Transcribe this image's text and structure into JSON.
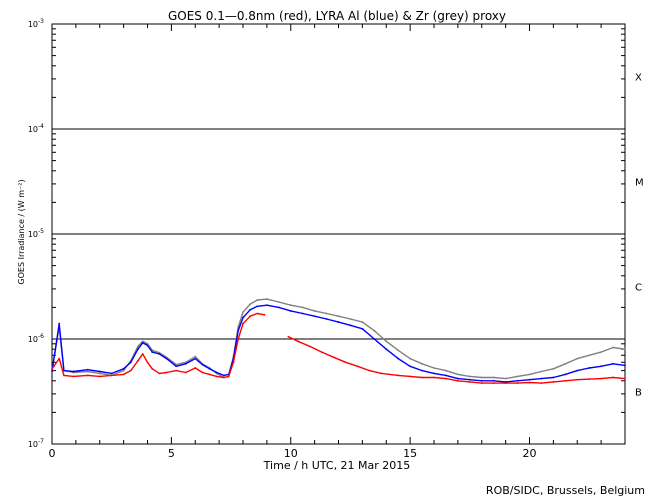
{
  "chart_data": {
    "type": "scatter",
    "title": "GOES 0.1—0.8nm (red), LYRA Al (blue) & Zr (grey) proxy",
    "xlabel": "Time / h UTC, 21 Mar 2015",
    "ylabel": "GOES Irradiance / (W m⁻²)",
    "credit": "ROB/SIDC, Brussels, Belgium",
    "y_scale": "log",
    "xlim": [
      0,
      24
    ],
    "ylim": [
      1e-07,
      0.001
    ],
    "grid": "horizontal lines at flare class boundaries",
    "x_ticks": [
      {
        "value": 0,
        "label": "0"
      },
      {
        "value": 5,
        "label": "5"
      },
      {
        "value": 10,
        "label": "10"
      },
      {
        "value": 15,
        "label": "15"
      },
      {
        "value": 20,
        "label": "20"
      }
    ],
    "y_ticks": [
      {
        "value": 1e-07,
        "base": "10",
        "exp": "-7"
      },
      {
        "value": 1e-06,
        "base": "10",
        "exp": "-6"
      },
      {
        "value": 1e-05,
        "base": "10",
        "exp": "-5"
      },
      {
        "value": 0.0001,
        "base": "10",
        "exp": "-4"
      },
      {
        "value": 0.001,
        "base": "10",
        "exp": "-3"
      }
    ],
    "flare_classes": [
      {
        "label": "X",
        "min": 0.0001,
        "max": 0.001
      },
      {
        "label": "M",
        "min": 1e-05,
        "max": 0.0001
      },
      {
        "label": "C",
        "min": 1e-06,
        "max": 1e-05
      },
      {
        "label": "B",
        "min": 1e-07,
        "max": 1e-06
      }
    ],
    "class_boundaries": [
      1e-06,
      1e-05,
      0.0001
    ],
    "series": [
      {
        "name": "GOES 0.1—0.8nm",
        "color": "#ff0000",
        "segments": [
          [
            [
              0.0,
              5.2e-07
            ],
            [
              0.3,
              6.5e-07
            ],
            [
              0.5,
              4.5e-07
            ],
            [
              0.9,
              4.4e-07
            ],
            [
              1.5,
              4.5e-07
            ],
            [
              2.0,
              4.4e-07
            ],
            [
              2.5,
              4.5e-07
            ],
            [
              3.0,
              4.6e-07
            ],
            [
              3.3,
              5e-07
            ],
            [
              3.6,
              6.2e-07
            ],
            [
              3.8,
              7.2e-07
            ],
            [
              4.0,
              6e-07
            ],
            [
              4.2,
              5.2e-07
            ],
            [
              4.5,
              4.7e-07
            ],
            [
              4.8,
              4.8e-07
            ],
            [
              5.2,
              5e-07
            ],
            [
              5.6,
              4.8e-07
            ],
            [
              6.0,
              5.3e-07
            ],
            [
              6.3,
              4.8e-07
            ],
            [
              6.6,
              4.6e-07
            ],
            [
              6.9,
              4.4e-07
            ],
            [
              7.2,
              4.3e-07
            ],
            [
              7.4,
              4.4e-07
            ],
            [
              7.6,
              6e-07
            ],
            [
              7.8,
              1e-06
            ],
            [
              8.0,
              1.4e-06
            ],
            [
              8.3,
              1.65e-06
            ],
            [
              8.6,
              1.75e-06
            ],
            [
              8.9,
              1.7e-06
            ]
          ],
          [
            [
              9.9,
              1.05e-06
            ],
            [
              10.3,
              9.5e-07
            ],
            [
              10.8,
              8.5e-07
            ],
            [
              11.3,
              7.5e-07
            ],
            [
              11.8,
              6.7e-07
            ],
            [
              12.3,
              6e-07
            ],
            [
              12.8,
              5.5e-07
            ],
            [
              13.3,
              5e-07
            ],
            [
              13.8,
              4.7e-07
            ],
            [
              14.5,
              4.5e-07
            ],
            [
              15.0,
              4.4e-07
            ],
            [
              15.5,
              4.3e-07
            ],
            [
              16.0,
              4.3e-07
            ],
            [
              16.5,
              4.2e-07
            ],
            [
              17.0,
              4e-07
            ],
            [
              17.5,
              3.9e-07
            ],
            [
              18.0,
              3.8e-07
            ],
            [
              18.5,
              3.8e-07
            ],
            [
              19.0,
              3.8e-07
            ],
            [
              19.5,
              3.8e-07
            ],
            [
              20.0,
              3.85e-07
            ],
            [
              20.5,
              3.8e-07
            ],
            [
              21.0,
              3.9e-07
            ],
            [
              21.5,
              4e-07
            ],
            [
              22.0,
              4.1e-07
            ],
            [
              22.5,
              4.15e-07
            ],
            [
              23.0,
              4.2e-07
            ],
            [
              23.5,
              4.3e-07
            ],
            [
              24.0,
              4.2e-07
            ]
          ]
        ]
      },
      {
        "name": "LYRA Al",
        "color": "#0000ff",
        "segments": [
          [
            [
              0.0,
              4.9e-07
            ],
            [
              0.3,
              1.4e-06
            ],
            [
              0.5,
              5e-07
            ],
            [
              0.9,
              4.9e-07
            ],
            [
              1.5,
              5.1e-07
            ],
            [
              2.0,
              4.9e-07
            ],
            [
              2.5,
              4.7e-07
            ],
            [
              3.0,
              5.2e-07
            ],
            [
              3.3,
              6e-07
            ],
            [
              3.6,
              8e-07
            ],
            [
              3.8,
              9.2e-07
            ],
            [
              4.0,
              8.7e-07
            ],
            [
              4.2,
              7.5e-07
            ],
            [
              4.5,
              7.2e-07
            ],
            [
              4.8,
              6.5e-07
            ],
            [
              5.2,
              5.5e-07
            ],
            [
              5.6,
              5.8e-07
            ],
            [
              6.0,
              6.5e-07
            ],
            [
              6.3,
              5.7e-07
            ],
            [
              6.6,
              5.2e-07
            ],
            [
              6.9,
              4.8e-07
            ],
            [
              7.2,
              4.5e-07
            ],
            [
              7.4,
              4.6e-07
            ],
            [
              7.6,
              6.5e-07
            ],
            [
              7.8,
              1.2e-06
            ],
            [
              8.0,
              1.6e-06
            ],
            [
              8.3,
              1.9e-06
            ],
            [
              8.6,
              2.05e-06
            ],
            [
              9.0,
              2.1e-06
            ],
            [
              9.5,
              2e-06
            ],
            [
              10.0,
              1.85e-06
            ],
            [
              10.5,
              1.75e-06
            ],
            [
              11.0,
              1.65e-06
            ],
            [
              11.5,
              1.55e-06
            ],
            [
              12.0,
              1.45e-06
            ],
            [
              12.5,
              1.35e-06
            ],
            [
              13.0,
              1.25e-06
            ],
            [
              13.5,
              1e-06
            ],
            [
              14.0,
              8e-07
            ],
            [
              14.5,
              6.5e-07
            ],
            [
              15.0,
              5.5e-07
            ],
            [
              15.5,
              5e-07
            ],
            [
              16.0,
              4.7e-07
            ],
            [
              16.5,
              4.5e-07
            ],
            [
              17.0,
              4.2e-07
            ],
            [
              17.5,
              4.1e-07
            ],
            [
              18.0,
              4e-07
            ],
            [
              18.5,
              4e-07
            ],
            [
              19.0,
              3.9e-07
            ],
            [
              19.5,
              4e-07
            ],
            [
              20.0,
              4.1e-07
            ],
            [
              20.5,
              4.2e-07
            ],
            [
              21.0,
              4.3e-07
            ],
            [
              21.5,
              4.6e-07
            ],
            [
              22.0,
              5e-07
            ],
            [
              22.5,
              5.3e-07
            ],
            [
              23.0,
              5.5e-07
            ],
            [
              23.5,
              5.8e-07
            ],
            [
              24.0,
              5.6e-07
            ]
          ]
        ]
      },
      {
        "name": "Zr",
        "color": "#808080",
        "segments": [
          [
            [
              0.0,
              5e-07
            ],
            [
              0.3,
              1.3e-06
            ],
            [
              0.5,
              5e-07
            ],
            [
              0.9,
              4.8e-07
            ],
            [
              1.5,
              4.9e-07
            ],
            [
              2.0,
              4.7e-07
            ],
            [
              2.5,
              4.5e-07
            ],
            [
              3.0,
              5e-07
            ],
            [
              3.3,
              6.2e-07
            ],
            [
              3.6,
              8.5e-07
            ],
            [
              3.8,
              9.5e-07
            ],
            [
              4.0,
              9e-07
            ],
            [
              4.2,
              7.8e-07
            ],
            [
              4.5,
              7.4e-07
            ],
            [
              4.8,
              6.7e-07
            ],
            [
              5.2,
              5.7e-07
            ],
            [
              5.6,
              6e-07
            ],
            [
              6.0,
              6.8e-07
            ],
            [
              6.3,
              5.8e-07
            ],
            [
              6.6,
              5.3e-07
            ],
            [
              6.9,
              4.7e-07
            ],
            [
              7.2,
              4.3e-07
            ],
            [
              7.4,
              4.4e-07
            ],
            [
              7.6,
              6.8e-07
            ],
            [
              7.8,
              1.3e-06
            ],
            [
              8.0,
              1.8e-06
            ],
            [
              8.3,
              2.15e-06
            ],
            [
              8.6,
              2.35e-06
            ],
            [
              9.0,
              2.4e-06
            ],
            [
              9.5,
              2.25e-06
            ],
            [
              10.0,
              2.1e-06
            ],
            [
              10.5,
              2e-06
            ],
            [
              11.0,
              1.85e-06
            ],
            [
              11.5,
              1.75e-06
            ],
            [
              12.0,
              1.65e-06
            ],
            [
              12.5,
              1.55e-06
            ],
            [
              13.0,
              1.45e-06
            ],
            [
              13.5,
              1.2e-06
            ],
            [
              14.0,
              9.5e-07
            ],
            [
              14.5,
              7.8e-07
            ],
            [
              15.0,
              6.5e-07
            ],
            [
              15.5,
              5.8e-07
            ],
            [
              16.0,
              5.3e-07
            ],
            [
              16.5,
              5e-07
            ],
            [
              17.0,
              4.6e-07
            ],
            [
              17.5,
              4.4e-07
            ],
            [
              18.0,
              4.3e-07
            ],
            [
              18.5,
              4.3e-07
            ],
            [
              19.0,
              4.2e-07
            ],
            [
              19.5,
              4.4e-07
            ],
            [
              20.0,
              4.6e-07
            ],
            [
              20.5,
              4.9e-07
            ],
            [
              21.0,
              5.2e-07
            ],
            [
              21.5,
              5.8e-07
            ],
            [
              22.0,
              6.5e-07
            ],
            [
              22.5,
              7e-07
            ],
            [
              23.0,
              7.5e-07
            ],
            [
              23.5,
              8.3e-07
            ],
            [
              24.0,
              8e-07
            ]
          ]
        ]
      }
    ]
  }
}
